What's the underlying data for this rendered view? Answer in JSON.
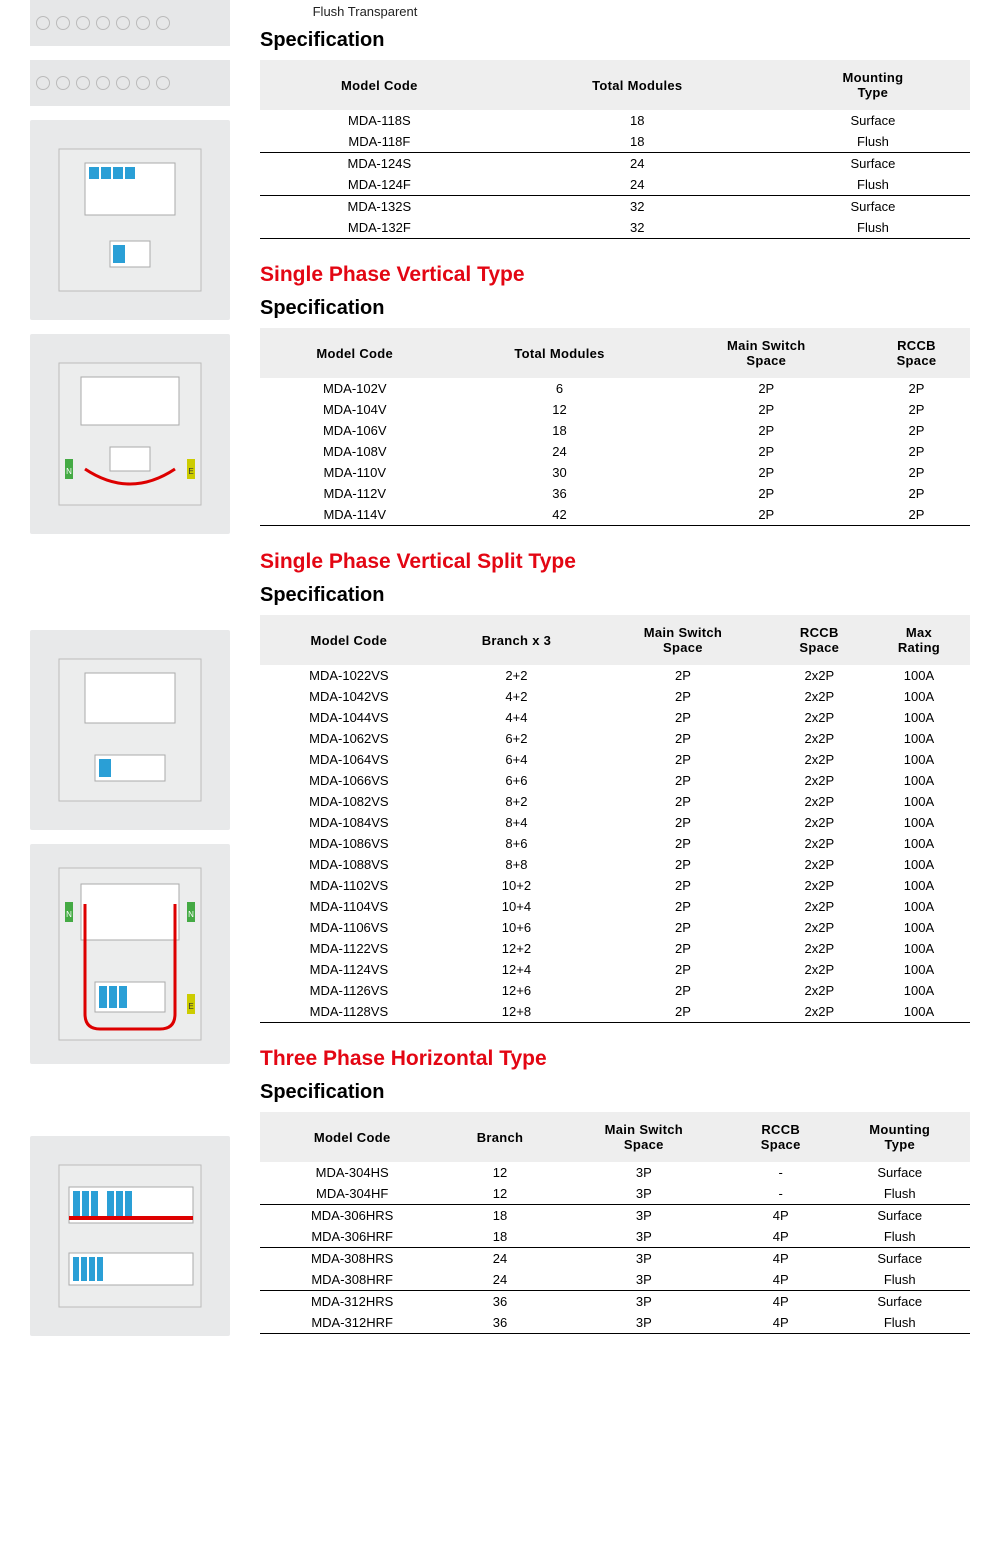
{
  "label_flush": "Flush Transparent",
  "heading_spec": "Specification",
  "section1": {
    "title": null,
    "columns": [
      "Model Code",
      "Total Modules",
      "Mounting Type"
    ],
    "groups": [
      [
        [
          "MDA-118S",
          "18",
          "Surface"
        ],
        [
          "MDA-118F",
          "18",
          "Flush"
        ]
      ],
      [
        [
          "MDA-124S",
          "24",
          "Surface"
        ],
        [
          "MDA-124F",
          "24",
          "Flush"
        ]
      ],
      [
        [
          "MDA-132S",
          "32",
          "Surface"
        ],
        [
          "MDA-132F",
          "32",
          "Flush"
        ]
      ]
    ]
  },
  "section2": {
    "title": "Single Phase Vertical Type",
    "columns": [
      "Model Code",
      "Total Modules",
      "Main Switch Space",
      "RCCB Space"
    ],
    "rows": [
      [
        "MDA-102V",
        "6",
        "2P",
        "2P"
      ],
      [
        "MDA-104V",
        "12",
        "2P",
        "2P"
      ],
      [
        "MDA-106V",
        "18",
        "2P",
        "2P"
      ],
      [
        "MDA-108V",
        "24",
        "2P",
        "2P"
      ],
      [
        "MDA-110V",
        "30",
        "2P",
        "2P"
      ],
      [
        "MDA-112V",
        "36",
        "2P",
        "2P"
      ],
      [
        "MDA-114V",
        "42",
        "2P",
        "2P"
      ]
    ]
  },
  "section3": {
    "title": "Single Phase Vertical Split Type",
    "columns": [
      "Model Code",
      "Branch x 3",
      "Main Switch Space",
      "RCCB Space",
      "Max Rating"
    ],
    "rows": [
      [
        "MDA-1022VS",
        "2+2",
        "2P",
        "2x2P",
        "100A"
      ],
      [
        "MDA-1042VS",
        "4+2",
        "2P",
        "2x2P",
        "100A"
      ],
      [
        "MDA-1044VS",
        "4+4",
        "2P",
        "2x2P",
        "100A"
      ],
      [
        "MDA-1062VS",
        "6+2",
        "2P",
        "2x2P",
        "100A"
      ],
      [
        "MDA-1064VS",
        "6+4",
        "2P",
        "2x2P",
        "100A"
      ],
      [
        "MDA-1066VS",
        "6+6",
        "2P",
        "2x2P",
        "100A"
      ],
      [
        "MDA-1082VS",
        "8+2",
        "2P",
        "2x2P",
        "100A"
      ],
      [
        "MDA-1084VS",
        "8+4",
        "2P",
        "2x2P",
        "100A"
      ],
      [
        "MDA-1086VS",
        "8+6",
        "2P",
        "2x2P",
        "100A"
      ],
      [
        "MDA-1088VS",
        "8+8",
        "2P",
        "2x2P",
        "100A"
      ],
      [
        "MDA-1102VS",
        "10+2",
        "2P",
        "2x2P",
        "100A"
      ],
      [
        "MDA-1104VS",
        "10+4",
        "2P",
        "2x2P",
        "100A"
      ],
      [
        "MDA-1106VS",
        "10+6",
        "2P",
        "2x2P",
        "100A"
      ],
      [
        "MDA-1122VS",
        "12+2",
        "2P",
        "2x2P",
        "100A"
      ],
      [
        "MDA-1124VS",
        "12+4",
        "2P",
        "2x2P",
        "100A"
      ],
      [
        "MDA-1126VS",
        "12+6",
        "2P",
        "2x2P",
        "100A"
      ],
      [
        "MDA-1128VS",
        "12+8",
        "2P",
        "2x2P",
        "100A"
      ]
    ]
  },
  "section4": {
    "title": "Three Phase Horizontal Type",
    "columns": [
      "Model Code",
      "Branch",
      "Main Switch Space",
      "RCCB Space",
      "Mounting Type"
    ],
    "groups": [
      [
        [
          "MDA-304HS",
          "12",
          "3P",
          "-",
          "Surface"
        ],
        [
          "MDA-304HF",
          "12",
          "3P",
          "-",
          "Flush"
        ]
      ],
      [
        [
          "MDA-306HRS",
          "18",
          "3P",
          "4P",
          "Surface"
        ],
        [
          "MDA-306HRF",
          "18",
          "3P",
          "4P",
          "Flush"
        ]
      ],
      [
        [
          "MDA-308HRS",
          "24",
          "3P",
          "4P",
          "Surface"
        ],
        [
          "MDA-308HRF",
          "24",
          "3P",
          "4P",
          "Flush"
        ]
      ],
      [
        [
          "MDA-312HRS",
          "36",
          "3P",
          "4P",
          "Surface"
        ],
        [
          "MDA-312HRF",
          "36",
          "3P",
          "4P",
          "Flush"
        ]
      ]
    ]
  },
  "colors": {
    "accent": "#e30613",
    "header_bg": "#eeeeee",
    "border": "#000000",
    "thumb_bg": "#e8e9ea"
  }
}
